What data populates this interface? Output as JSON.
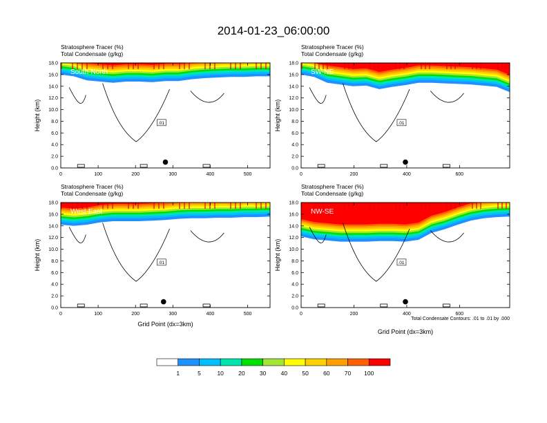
{
  "figure": {
    "title": "2014-01-23_06:00:00",
    "footnote": "Total Condensate Contours: .01 to .01 by .000"
  },
  "colors": {
    "levels": [
      "#ffffff",
      "#1e90ff",
      "#00bfff",
      "#00e5b0",
      "#00e000",
      "#a0e632",
      "#ffff00",
      "#ffd000",
      "#ffa000",
      "#ff6000",
      "#ff0000"
    ],
    "contour": "#000000"
  },
  "colorbar": {
    "labels": [
      "1",
      "5",
      "10",
      "20",
      "30",
      "40",
      "50",
      "60",
      "70",
      "100"
    ]
  },
  "chart_data": [
    {
      "type": "heatmap",
      "panel": "south-north",
      "annotation": "South-North",
      "title_line1": "Stratosphere Tracer   (%)",
      "title_line2": "Total Condensate   (g/kg)",
      "ylabel": "Height (km)",
      "xlabel": "",
      "xlim": [
        0,
        560
      ],
      "ylim": [
        0,
        18
      ],
      "xticks": [
        "0",
        "100",
        "200",
        "300",
        "400",
        "500"
      ],
      "xtick_values": [
        0,
        100,
        200,
        300,
        400,
        500
      ],
      "yticks": [
        "0.0",
        "2.0",
        "4.0",
        "6.0",
        "8.0",
        "10.0",
        "12.0",
        "14.0",
        "16.0",
        "18.0"
      ],
      "marker_x": 280,
      "marker_y": 1.0,
      "tracer_top_km": [
        16.0,
        15.7,
        15.0,
        14.8,
        14.6,
        14.8,
        14.8,
        14.7,
        14.9,
        14.9,
        15.2,
        15.4,
        15.5,
        15.6,
        15.6,
        15.7,
        15.7
      ],
      "contour_label": ".01"
    },
    {
      "type": "heatmap",
      "panel": "sw-ne",
      "annotation": "SW-NE",
      "title_line1": "Stratosphere Tracer   (%)",
      "title_line2": "Total Condensate   (g/kg)",
      "ylabel": "Height (km)",
      "xlabel": "",
      "xlim": [
        0,
        790
      ],
      "ylim": [
        0,
        18
      ],
      "xticks": [
        "0",
        "200",
        "400",
        "600"
      ],
      "xtick_values": [
        0,
        200,
        400,
        600
      ],
      "yticks": [
        "0.0",
        "2.0",
        "4.0",
        "6.0",
        "8.0",
        "10.0",
        "12.0",
        "14.0",
        "16.0",
        "18.0"
      ],
      "marker_x": 395,
      "marker_y": 1.0,
      "tracer_top_km": [
        16.0,
        15.6,
        14.6,
        14.3,
        14.0,
        14.1,
        13.5,
        13.9,
        14.2,
        14.6,
        14.6,
        14.5,
        14.4,
        14.3,
        14.1,
        13.9,
        13.0
      ],
      "contour_label": ".01"
    },
    {
      "type": "heatmap",
      "panel": "west-east",
      "annotation": "West-East",
      "title_line1": "Stratosphere Tracer   (%)",
      "title_line2": "Total Condensate   (g/kg)",
      "ylabel": "Height (km)",
      "xlabel": "Grid Point (dx=3km)",
      "xlim": [
        0,
        560
      ],
      "ylim": [
        0,
        18
      ],
      "xticks": [
        "0",
        "100",
        "200",
        "300",
        "400",
        "500"
      ],
      "xtick_values": [
        0,
        100,
        200,
        300,
        400,
        500
      ],
      "yticks": [
        "0.0",
        "2.0",
        "4.0",
        "6.0",
        "8.0",
        "10.0",
        "12.0",
        "14.0",
        "16.0",
        "18.0"
      ],
      "marker_x": 275,
      "marker_y": 1.0,
      "tracer_top_km": [
        14.2,
        14.0,
        14.2,
        14.6,
        14.8,
        14.8,
        14.8,
        14.9,
        15.0,
        15.2,
        15.3,
        15.3,
        15.4,
        15.4,
        15.5,
        15.5,
        15.6
      ],
      "contour_label": ".01"
    },
    {
      "type": "heatmap",
      "panel": "nw-se",
      "annotation": "NW-SE",
      "title_line1": "Stratosphere Tracer   (%)",
      "title_line2": "Total Condensate   (g/kg)",
      "ylabel": "Height (km)",
      "xlabel": "Grid Point (dx=3km)",
      "xlim": [
        0,
        790
      ],
      "ylim": [
        0,
        18
      ],
      "xticks": [
        "0",
        "200",
        "400",
        "600"
      ],
      "xtick_values": [
        0,
        200,
        400,
        600
      ],
      "yticks": [
        "0.0",
        "2.0",
        "4.0",
        "6.0",
        "8.0",
        "10.0",
        "12.0",
        "14.0",
        "16.0",
        "18.0"
      ],
      "marker_x": 395,
      "marker_y": 1.0,
      "tracer_top_km": [
        12.2,
        11.7,
        11.5,
        11.3,
        11.3,
        11.3,
        11.4,
        11.4,
        11.3,
        11.6,
        12.8,
        13.4,
        14.2,
        14.9,
        15.3,
        15.5,
        15.6
      ],
      "contour_label": ".01"
    }
  ]
}
